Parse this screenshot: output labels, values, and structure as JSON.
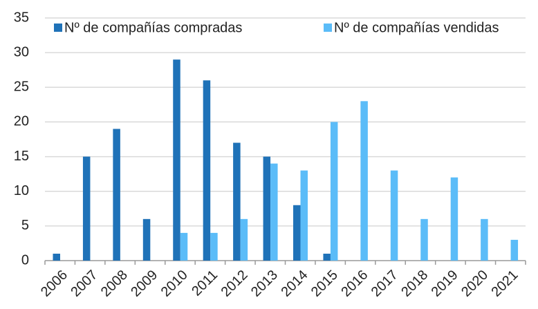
{
  "chart_data": {
    "type": "bar",
    "categories": [
      "2006",
      "2007",
      "2008",
      "2009",
      "2010",
      "2011",
      "2012",
      "2013",
      "2014",
      "2015",
      "2016",
      "2017",
      "2018",
      "2019",
      "2020",
      "2021"
    ],
    "series": [
      {
        "name": "Nº de compañías compradas",
        "color": "#1f72b8",
        "values": [
          1,
          15,
          19,
          6,
          29,
          26,
          17,
          15,
          8,
          1,
          0,
          0,
          0,
          0,
          0,
          0
        ]
      },
      {
        "name": "Nº de compañías vendidas",
        "color": "#5bbcf8",
        "values": [
          0,
          0,
          0,
          0,
          4,
          4,
          6,
          14,
          13,
          20,
          23,
          13,
          6,
          12,
          6,
          3
        ]
      }
    ],
    "ylim": [
      0,
      35
    ],
    "yticks": [
      0,
      5,
      10,
      15,
      20,
      25,
      30,
      35
    ],
    "grid": true,
    "legend": "top"
  }
}
